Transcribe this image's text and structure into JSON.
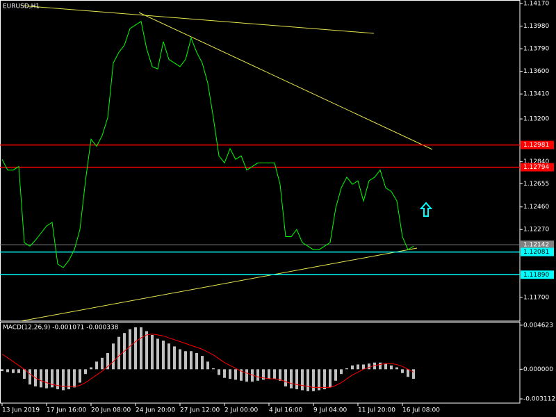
{
  "chart_data": [
    {
      "type": "line",
      "title": "EURUSD,H1",
      "color": "#00ff00",
      "values": [
        1.1286,
        1.1277,
        1.1277,
        1.128,
        1.1216,
        1.1213,
        1.1218,
        1.1224,
        1.123,
        1.1233,
        1.1198,
        1.1195,
        1.1201,
        1.121,
        1.1227,
        1.1268,
        1.1303,
        1.1297,
        1.1306,
        1.1321,
        1.1367,
        1.1376,
        1.1382,
        1.1396,
        1.1399,
        1.1402,
        1.1379,
        1.1364,
        1.1362,
        1.1385,
        1.137,
        1.1367,
        1.1364,
        1.137,
        1.1388,
        1.1376,
        1.1367,
        1.135,
        1.1321,
        1.1289,
        1.1283,
        1.1295,
        1.1286,
        1.1289,
        1.1277,
        1.128,
        1.1283,
        1.1283,
        1.1283,
        1.1283,
        1.1265,
        1.1221,
        1.1221,
        1.1227,
        1.1216,
        1.1213,
        1.121,
        1.121,
        1.1213,
        1.1216,
        1.1245,
        1.1262,
        1.1271,
        1.1265,
        1.1268,
        1.1251,
        1.1268,
        1.1271,
        1.1277,
        1.1262,
        1.1259,
        1.1251,
        1.1221,
        1.121,
        1.1213
      ],
      "ylim": [
        1.115,
        1.142
      ],
      "yticks": [
        {
          "value": 1.1417,
          "label": "1.14170"
        },
        {
          "value": 1.1398,
          "label": "1.13980"
        },
        {
          "value": 1.1379,
          "label": "1.13790"
        },
        {
          "value": 1.136,
          "label": "1.13600"
        },
        {
          "value": 1.1341,
          "label": "1.13410"
        },
        {
          "value": 1.132,
          "label": "1.13200"
        },
        {
          "value": 1.1284,
          "label": "1.12840"
        },
        1.12655,
        {
          "value": 1.1246,
          "label": "1.12460"
        },
        {
          "value": 1.1227,
          "label": "1.12270"
        },
        {
          "value": 1.117,
          "label": "1.11700"
        }
      ],
      "levels": [
        {
          "value": 1.12981,
          "label": "1.12981",
          "color": "#ff0000"
        },
        {
          "value": 1.12794,
          "label": "1.12794",
          "color": "#ff0000"
        },
        {
          "value": 1.12142,
          "label": "1.12142",
          "color": "#808080"
        },
        {
          "value": 1.12081,
          "label": "1.12081",
          "color": "#00ffff"
        },
        {
          "value": 1.1189,
          "label": "1.11890",
          "color": "#00ffff"
        }
      ]
    },
    {
      "type": "bar",
      "title": "MACD(12,26,9) -0.001071 -0.000338",
      "categories": [
        "13 Jun 2019",
        null,
        null,
        null,
        null,
        null,
        null,
        null,
        "17 Jun 16:00",
        null,
        null,
        null,
        null,
        null,
        null,
        null,
        "20 Jun 08:00",
        null,
        null,
        null,
        null,
        null,
        null,
        null,
        "24 Jun 20:00",
        null,
        null,
        null,
        null,
        null,
        null,
        null,
        "27 Jun 12:00",
        null,
        null,
        null,
        null,
        null,
        null,
        null,
        "2 Jul 00:00",
        null,
        null,
        null,
        null,
        null,
        null,
        null,
        "4 Jul 16:00",
        null,
        null,
        null,
        null,
        null,
        null,
        null,
        "9 Jul 04:00",
        null,
        null,
        null,
        null,
        null,
        null,
        null,
        "11 Jul 20:00",
        null,
        null,
        null,
        null,
        null,
        null,
        null,
        "16 Jul 08:00",
        null,
        null
      ],
      "series": [
        {
          "type": "bar",
          "color": "#c0c0c0",
          "values": [
            -0.0002,
            -0.0003,
            -0.0004,
            -0.0004,
            -0.001,
            -0.0016,
            -0.0018,
            -0.0019,
            -0.002,
            -0.0019,
            -0.0021,
            -0.0022,
            -0.0021,
            -0.0019,
            -0.0014,
            -0.0005,
            0.0002,
            0.0008,
            0.0012,
            0.0017,
            0.0027,
            0.0034,
            0.0038,
            0.0042,
            0.0044,
            0.0044,
            0.004,
            0.0036,
            0.0032,
            0.003,
            0.0027,
            0.0024,
            0.0021,
            0.0019,
            0.0019,
            0.0017,
            0.0014,
            0.0008,
            0.0001,
            -0.0006,
            -0.0009,
            -0.001,
            -0.0011,
            -0.0012,
            -0.0013,
            -0.0013,
            -0.0012,
            -0.0011,
            -0.001,
            -0.001,
            -0.0012,
            -0.0018,
            -0.002,
            -0.0021,
            -0.0022,
            -0.0023,
            -0.0023,
            -0.0022,
            -0.0021,
            -0.0019,
            -0.0012,
            -0.0005,
            0.0001,
            0.0004,
            0.0005,
            0.0005,
            0.0006,
            0.0007,
            0.0007,
            0.0006,
            0.0004,
            0.0002,
            -0.0004,
            -0.0008,
            -0.001
          ]
        },
        {
          "type": "line",
          "color": "#ff0000",
          "values": [
            0.0016,
            0.0012,
            0.0008,
            0.0004,
            0,
            -0.0005,
            -0.0009,
            -0.0012,
            -0.0014,
            -0.0016,
            -0.0017,
            -0.0018,
            -0.0018,
            -0.0018,
            -0.0017,
            -0.0014,
            -0.001,
            -0.0006,
            -0.0002,
            0.0003,
            0.0008,
            0.0014,
            0.0019,
            0.0024,
            0.0029,
            0.0033,
            0.0036,
            0.0037,
            0.0036,
            0.0035,
            0.0033,
            0.0031,
            0.0029,
            0.0027,
            0.0025,
            0.0023,
            0.0021,
            0.0018,
            0.0015,
            0.0011,
            0.0007,
            0.0004,
            0.0001,
            -0.0002,
            -0.0004,
            -0.0006,
            -0.0008,
            -0.0009,
            -0.001,
            -0.001,
            -0.0011,
            -0.0013,
            -0.0015,
            -0.0016,
            -0.0017,
            -0.0018,
            -0.0019,
            -0.0019,
            -0.0019,
            -0.0019,
            -0.0017,
            -0.0014,
            -0.001,
            -0.0006,
            -0.0003,
            0,
            0.0002,
            0.0004,
            0.0005,
            0.0006,
            0.0006,
            0.0005,
            0.0003,
            0,
            -0.0003
          ]
        }
      ],
      "ylim": [
        -0.00355,
        0.00498
      ],
      "yticks": [
        {
          "value": 0.004623,
          "label": "0.004623"
        },
        {
          "value": 0,
          "label": "0.000000"
        },
        {
          "value": -0.003112,
          "label": "-0.003112"
        }
      ]
    }
  ]
}
